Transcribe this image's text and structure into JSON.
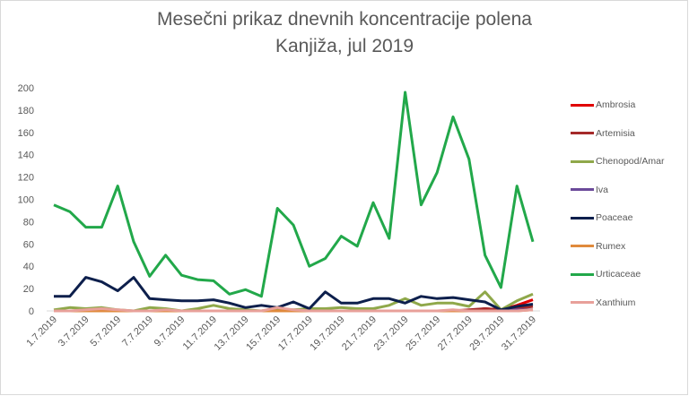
{
  "chart_data": {
    "type": "line",
    "title": "Mesečni prikaz dnevnih koncentracije polena",
    "subtitle": "Kanjiža, jul 2019",
    "xlabel": "",
    "ylabel": "",
    "ylim": [
      0,
      200
    ],
    "yticks": [
      0,
      20,
      40,
      60,
      80,
      100,
      120,
      140,
      160,
      180,
      200
    ],
    "grid": false,
    "legend_position": "right",
    "categories": [
      "1.7.2019",
      "2.7.2019",
      "3.7.2019",
      "4.7.2019",
      "5.7.2019",
      "6.7.2019",
      "7.7.2019",
      "8.7.2019",
      "9.7.2019",
      "10.7.2019",
      "11.7.2019",
      "12.7.2019",
      "13.7.2019",
      "14.7.2019",
      "15.7.2019",
      "16.7.2019",
      "17.7.2019",
      "18.7.2019",
      "19.7.2019",
      "20.7.2019",
      "21.7.2019",
      "22.7.2019",
      "23.7.2019",
      "24.7.2019",
      "25.7.2019",
      "26.7.2019",
      "27.7.2019",
      "28.7.2019",
      "29.7.2019",
      "30.7.2019",
      "31.7.2019"
    ],
    "tick_labels": [
      "1.7.2019",
      "3.7.2019",
      "5.7.2019",
      "7.7.2019",
      "9.7.2019",
      "11.7.2019",
      "13.7.2019",
      "15.7.2019",
      "17.7.2019",
      "19.7.2019",
      "21.7.2019",
      "23.7.2019",
      "25.7.2019",
      "27.7.2019",
      "29.7.2019",
      "31.7.2019"
    ],
    "series": [
      {
        "name": "Ambrosia",
        "color": "#e00000",
        "values": [
          0,
          0,
          0,
          0,
          0,
          0,
          0,
          0,
          0,
          0,
          0,
          0,
          0,
          0,
          0,
          0,
          0,
          0,
          0,
          0,
          0,
          0,
          0,
          0,
          0,
          0,
          0,
          2,
          1,
          5,
          10
        ]
      },
      {
        "name": "Artemisia",
        "color": "#a52a2a",
        "values": [
          0,
          0,
          0,
          0,
          0,
          0,
          0,
          0,
          0,
          0,
          0,
          0,
          0,
          0,
          0,
          0,
          0,
          0,
          0,
          0,
          0,
          0,
          0,
          0,
          0,
          0,
          1,
          2,
          1,
          2,
          4
        ]
      },
      {
        "name": "Chenopod/Amar",
        "color": "#8fa84a",
        "values": [
          1,
          3,
          2,
          3,
          1,
          0,
          3,
          2,
          0,
          2,
          5,
          2,
          1,
          0,
          2,
          1,
          2,
          2,
          3,
          2,
          2,
          5,
          11,
          5,
          7,
          7,
          4,
          17,
          1,
          9,
          15
        ]
      },
      {
        "name": "Iva",
        "color": "#6b4a9a",
        "values": [
          0,
          0,
          0,
          0,
          0,
          0,
          0,
          0,
          0,
          0,
          0,
          0,
          0,
          0,
          0,
          0,
          0,
          0,
          0,
          0,
          0,
          0,
          0,
          0,
          0,
          0,
          0,
          0,
          0,
          1,
          1
        ]
      },
      {
        "name": "Poaceae",
        "color": "#0d1f4c",
        "values": [
          13,
          13,
          30,
          26,
          18,
          30,
          11,
          10,
          9,
          9,
          10,
          7,
          3,
          5,
          3,
          8,
          2,
          17,
          7,
          7,
          11,
          11,
          7,
          13,
          11,
          12,
          10,
          8,
          1,
          4,
          6
        ]
      },
      {
        "name": "Rumex",
        "color": "#e08a3c",
        "values": [
          0,
          0,
          0,
          0,
          0,
          0,
          0,
          0,
          0,
          0,
          0,
          0,
          0,
          0,
          0,
          0,
          0,
          0,
          0,
          0,
          0,
          0,
          0,
          0,
          0,
          0,
          0,
          0,
          0,
          0,
          1
        ]
      },
      {
        "name": "Urticaceae",
        "color": "#22a84a",
        "values": [
          95,
          89,
          75,
          75,
          112,
          62,
          31,
          50,
          32,
          28,
          27,
          15,
          19,
          13,
          92,
          77,
          40,
          47,
          67,
          58,
          97,
          65,
          196,
          95,
          124,
          174,
          136,
          50,
          21,
          112,
          62
        ]
      },
      {
        "name": "Xanthium",
        "color": "#e8a09a",
        "values": [
          0,
          0,
          1,
          2,
          1,
          0,
          0,
          1,
          0,
          0,
          0,
          0,
          0,
          0,
          3,
          1,
          0,
          0,
          0,
          0,
          0,
          0,
          0,
          0,
          0,
          1,
          0,
          0,
          0,
          0,
          1
        ]
      }
    ]
  }
}
